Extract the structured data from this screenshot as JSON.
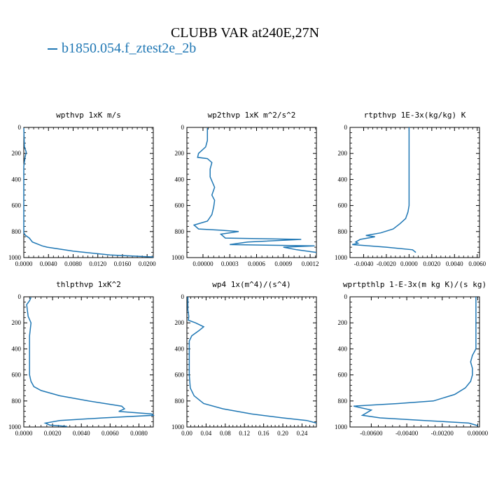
{
  "figure": {
    "title": "CLUBB VAR at240E,27N",
    "legend_label": "b1850.054.f_ztest2e_2b",
    "line_color": "#1f77b4"
  },
  "chart_data": [
    {
      "type": "line",
      "title": "wpthvp   1xK m/s",
      "xlabel": "",
      "ylabel": "",
      "xlim": [
        0,
        0.021
      ],
      "ylim": [
        1000,
        0
      ],
      "xticks": [
        0,
        0.004,
        0.008,
        0.012,
        0.016,
        0.02
      ],
      "xtick_labels": [
        "0.0000",
        "0.0040",
        "0.0080",
        "0.0120",
        "0.0160",
        "0.0200"
      ],
      "yticks": [
        0,
        200,
        400,
        600,
        800,
        1000
      ],
      "ytick_labels": [
        "0",
        "200",
        "400",
        "600",
        "800",
        "1000"
      ],
      "series": [
        {
          "x": [
            0,
            0.0001,
            0.0004,
            0.0002,
            0,
            0,
            0,
            0,
            0,
            0.0003,
            0.0009,
            0.0014,
            0.003,
            0.0038,
            0.008,
            0.014,
            0.021
          ],
          "y": [
            5,
            150,
            190,
            230,
            300,
            500,
            700,
            790,
            810,
            830,
            850,
            880,
            910,
            920,
            950,
            980,
            995
          ]
        }
      ]
    },
    {
      "type": "line",
      "title": "wp2thvp   1xK m^2/s^2",
      "xlabel": "",
      "ylabel": "",
      "xlim": [
        -0.00018,
        0.00127
      ],
      "ylim": [
        1000,
        0
      ],
      "xticks": [
        0,
        0.0003,
        0.0006,
        0.0009,
        0.0012
      ],
      "xtick_labels": [
        "0.00000",
        "0.0003",
        "0.0006",
        "0.0009",
        "0.0012"
      ],
      "yticks": [
        0,
        200,
        400,
        600,
        800,
        1000
      ],
      "ytick_labels": [
        "0",
        "200",
        "400",
        "600",
        "800",
        "1000"
      ],
      "series": [
        {
          "x": [
            5e-05,
            5e-05,
            3e-05,
            -5e-05,
            -6e-05,
            5e-05,
            0.0001,
            8e-05,
            8e-05,
            0.00013,
            0.0001,
            0.00013,
            0.00012,
            0.0001,
            5e-05,
            -0.0001,
            -5e-05,
            0.0002,
            0.0004,
            0.0002,
            0.00025,
            0.0011,
            0.0005,
            0.0003,
            0.00125,
            0.0009,
            0.00105,
            0.00127
          ],
          "y": [
            5,
            100,
            150,
            200,
            230,
            240,
            270,
            320,
            380,
            460,
            520,
            560,
            610,
            670,
            720,
            750,
            780,
            790,
            800,
            820,
            850,
            860,
            880,
            900,
            910,
            920,
            940,
            960
          ]
        }
      ]
    },
    {
      "type": "line",
      "title": "rtpthvp   1E-3x(kg/kg) K",
      "xlabel": "",
      "ylabel": "",
      "xlim": [
        -0.0052,
        0.0062
      ],
      "ylim": [
        1000,
        0
      ],
      "xticks": [
        -0.004,
        -0.002,
        0,
        0.002,
        0.004,
        0.006
      ],
      "xtick_labels": [
        "-0.0040",
        "-0.0020",
        "0.0000",
        "0.0020",
        "0.0040",
        "0.0060"
      ],
      "yticks": [
        0,
        200,
        400,
        600,
        800,
        1000
      ],
      "ytick_labels": [
        "0",
        "200",
        "400",
        "600",
        "800",
        "1000"
      ],
      "series": [
        {
          "x": [
            0,
            0,
            0,
            0,
            -0.0001,
            -0.0003,
            -0.0008,
            -0.0014,
            -0.0025,
            -0.0038,
            -0.003,
            -0.0043,
            -0.0047,
            -0.0045,
            -0.005,
            -0.002,
            0.0003,
            0.0006
          ],
          "y": [
            0,
            200,
            400,
            600,
            650,
            700,
            740,
            780,
            810,
            830,
            840,
            860,
            880,
            890,
            900,
            920,
            940,
            960
          ]
        }
      ]
    },
    {
      "type": "line",
      "title": "thlpthvp   1xK^2",
      "xlabel": "",
      "ylabel": "",
      "xlim": [
        0,
        0.009
      ],
      "ylim": [
        1000,
        0
      ],
      "xticks": [
        0,
        0.002,
        0.004,
        0.006,
        0.008
      ],
      "xtick_labels": [
        "0.0000",
        "0.0020",
        "0.0040",
        "0.0060",
        "0.0080"
      ],
      "yticks": [
        0,
        200,
        400,
        600,
        800,
        1000
      ],
      "ytick_labels": [
        "0",
        "200",
        "400",
        "600",
        "800",
        "1000"
      ],
      "series": [
        {
          "x": [
            0.0005,
            0.0004,
            0.0002,
            0.0003,
            0.0005,
            0.0004,
            0.0004,
            0.0004,
            0.0005,
            0.0007,
            0.0012,
            0.0025,
            0.0045,
            0.0068,
            0.007,
            0.0066,
            0.0089,
            0.009,
            0.0055,
            0.0025,
            0.0015,
            0.0018,
            0.003
          ],
          "y": [
            5,
            30,
            60,
            150,
            200,
            300,
            500,
            600,
            650,
            690,
            720,
            760,
            800,
            840,
            860,
            880,
            900,
            910,
            930,
            950,
            970,
            985,
            995
          ]
        }
      ]
    },
    {
      "type": "line",
      "title": "wp4   1x(m^4)/(s^4)",
      "xlabel": "",
      "ylabel": "",
      "xlim": [
        0,
        0.27
      ],
      "ylim": [
        1000,
        0
      ],
      "xticks": [
        0,
        0.04,
        0.08,
        0.12,
        0.16,
        0.2,
        0.24
      ],
      "xtick_labels": [
        "0.00",
        "0.04",
        "0.08",
        "0.12",
        "0.16",
        "0.20",
        "0.24"
      ],
      "yticks": [
        0,
        200,
        400,
        600,
        800,
        1000
      ],
      "ytick_labels": [
        "0",
        "200",
        "400",
        "600",
        "800",
        "1000"
      ],
      "series": [
        {
          "x": [
            0.002,
            0.002,
            0.004,
            0.003,
            0.018,
            0.035,
            0.025,
            0.01,
            0.005,
            0.005,
            0.005,
            0.005,
            0.007,
            0.015,
            0.035,
            0.075,
            0.135,
            0.2,
            0.25,
            0.27
          ],
          "y": [
            0,
            100,
            150,
            180,
            200,
            230,
            260,
            300,
            340,
            400,
            500,
            600,
            700,
            760,
            820,
            860,
            900,
            930,
            950,
            970
          ]
        }
      ]
    },
    {
      "type": "line",
      "title": "wprtpthlp   1-E-3x(m kg K)/(s kg)",
      "xlabel": "",
      "ylabel": "",
      "xlim": [
        -0.0072,
        0.0001
      ],
      "ylim": [
        1000,
        0
      ],
      "xticks": [
        -0.006,
        -0.004,
        -0.002,
        0
      ],
      "xtick_labels": [
        "-0.00600",
        "-0.00400",
        "-0.00200",
        "0.00000"
      ],
      "yticks": [
        0,
        200,
        400,
        600,
        800,
        1000
      ],
      "ytick_labels": [
        "0",
        "200",
        "400",
        "600",
        "800",
        "1000"
      ],
      "series": [
        {
          "x": [
            -0.0001,
            -0.0001,
            -0.0001,
            -0.0001,
            -0.0003,
            -0.0004,
            -0.0003,
            -0.0003,
            -0.0004,
            -0.0007,
            -0.0013,
            -0.0025,
            -0.0045,
            -0.007,
            -0.006,
            -0.0065,
            -0.0055,
            -0.003,
            -0.0005,
            0
          ],
          "y": [
            0,
            100,
            200,
            400,
            450,
            500,
            550,
            600,
            650,
            700,
            750,
            800,
            820,
            840,
            870,
            910,
            930,
            950,
            970,
            990
          ]
        }
      ]
    }
  ]
}
